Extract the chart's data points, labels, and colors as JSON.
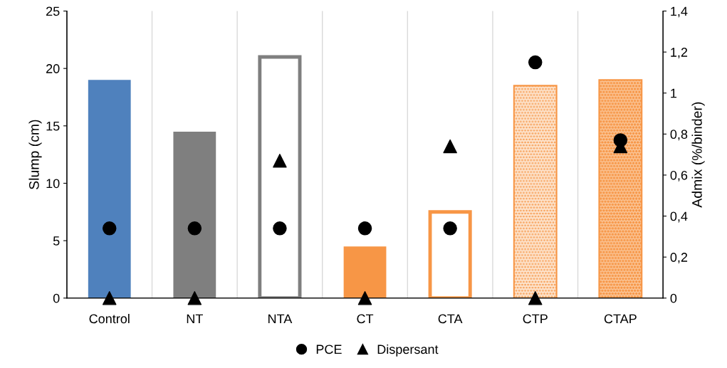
{
  "chart_data": {
    "type": "bar",
    "xlabel": null,
    "ylabel": "Slump (cm)",
    "y2label": "Admix (%/binder)",
    "categories": [
      "Control",
      "NT",
      "NTA",
      "CT",
      "CTA",
      "CTP",
      "CTAP"
    ],
    "series": [
      {
        "colors": [
          "#4f81bd",
          "#7f7f7f",
          "#7f7f7f",
          "#f79646",
          "#f79646",
          "#f79646",
          "#f79646"
        ],
        "values": [
          19,
          14.5,
          21,
          4.5,
          7.5,
          18.5,
          19
        ]
      },
      {
        "type": "scatter",
        "name": "PCE",
        "color": "#000000",
        "marker": "circle",
        "axis": "y2",
        "values": [
          0.34,
          0.34,
          0.34,
          0.34,
          0.34,
          1.15,
          0.77
        ]
      },
      {
        "type": "scatter",
        "name": "Dispersant",
        "color": "#000000",
        "marker": "triangle",
        "axis": "y2",
        "values": [
          0,
          0,
          0.67,
          0,
          0.74,
          0,
          0.74
        ]
      }
    ],
    "ylim": [
      0,
      25
    ],
    "yticks": [
      0,
      5,
      10,
      15,
      20,
      25
    ],
    "y2lim": [
      0,
      1.4
    ],
    "y2ticks": [
      {
        "value": 0,
        "label": "0"
      },
      {
        "value": 0.2,
        "label": "0,2"
      },
      {
        "value": 0.4,
        "label": "0,4"
      },
      {
        "value": 0.6,
        "label": "0,6"
      },
      {
        "value": 0.8,
        "label": "0,8"
      },
      {
        "value": 1,
        "label": "1"
      },
      {
        "value": 1.2,
        "label": "1,2"
      },
      {
        "value": 1.4,
        "label": "1,4"
      }
    ],
    "grid": "x",
    "legend": "bottom"
  }
}
